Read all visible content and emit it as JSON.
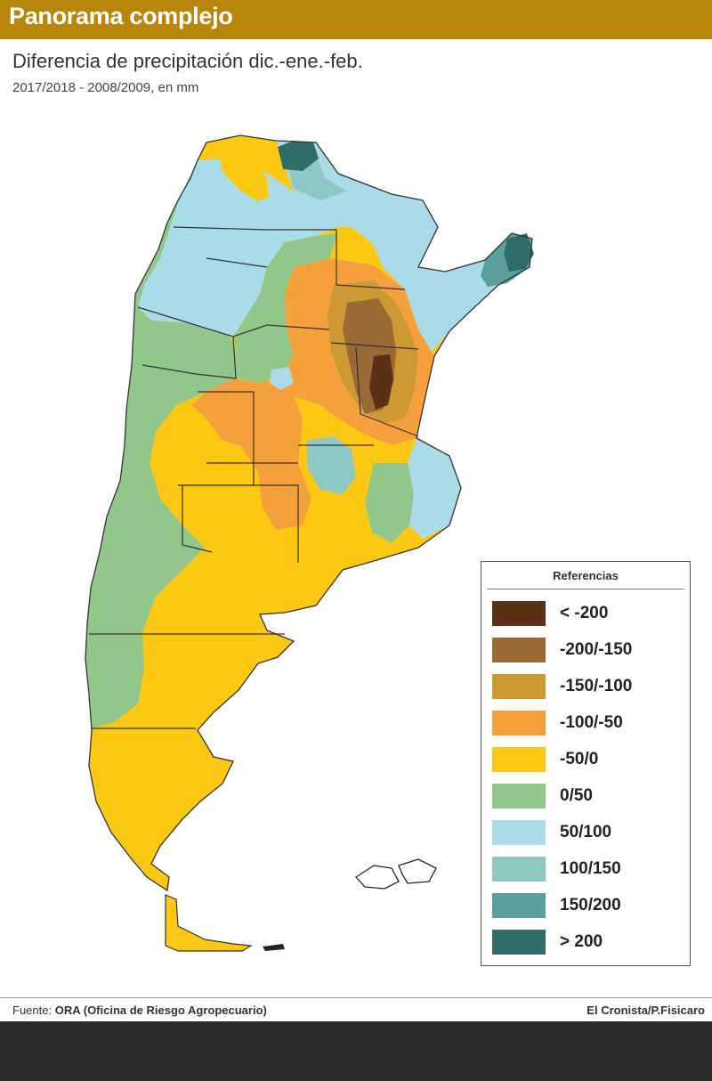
{
  "header": {
    "title": "Panorama complejo",
    "bar_color": "#b8860b"
  },
  "subtitle": "Diferencia de precipitación dic.-ene.-feb.",
  "subsubtitle": "2017/2018 - 2008/2009, en mm",
  "legend": {
    "title": "Referencias",
    "items": [
      {
        "label": "< -200",
        "color": "#5a3016"
      },
      {
        "label": "-200/-150",
        "color": "#9a6a36"
      },
      {
        "label": "-150/-100",
        "color": "#cc9933"
      },
      {
        "label": "-100/-50",
        "color": "#f5a03c"
      },
      {
        "label": "-50/0",
        "color": "#fcc814"
      },
      {
        "label": "0/50",
        "color": "#92c78c"
      },
      {
        "label": "50/100",
        "color": "#a9dbe8"
      },
      {
        "label": "100/150",
        "color": "#8ec8c2"
      },
      {
        "label": "150/200",
        "color": "#5a9f9e"
      },
      {
        "label": "> 200",
        "color": "#2f6e68"
      }
    ]
  },
  "footer": {
    "source_prefix": "Fuente:",
    "source": "ORA (Oficina de Riesgo Agropecuario)",
    "credit": "El Cronista/P.Fisicaro"
  }
}
